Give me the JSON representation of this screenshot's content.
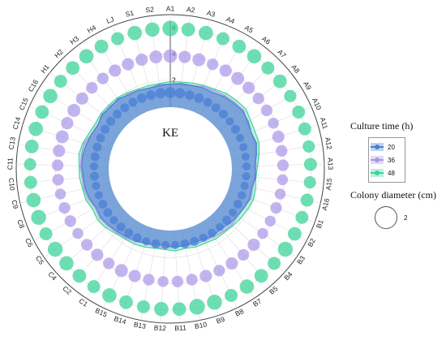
{
  "chart_data": {
    "type": "radar",
    "center_label": "KE",
    "categories": [
      "A1",
      "A2",
      "A3",
      "A4",
      "A5",
      "A6",
      "A7",
      "A8",
      "A9",
      "A10",
      "A11",
      "A12",
      "A13",
      "A15",
      "A16",
      "B1",
      "B2",
      "B3",
      "B4",
      "B5",
      "B7",
      "B8",
      "B9",
      "B10",
      "B11",
      "B12",
      "B13",
      "B14",
      "B15",
      "C1",
      "C2",
      "C4",
      "C5",
      "C6",
      "C8",
      "C9",
      "C10",
      "C11",
      "C13",
      "C14",
      "C15",
      "C16",
      "H1",
      "H2",
      "H3",
      "H4",
      "LJ",
      "S1",
      "S2"
    ],
    "r_ticks": [
      2,
      4,
      6
    ],
    "rlim": [
      0,
      6.5
    ],
    "legend_title": "Culture time (h)",
    "size_legend_title": "Colony diameter (cm)",
    "size_legend_value": "2",
    "series": [
      {
        "name": "20",
        "color": "#4a7fd6",
        "values": [
          1.7,
          1.8,
          1.8,
          1.9,
          1.9,
          2.1,
          2.2,
          2.3,
          2.2,
          2.0,
          2.1,
          1.9,
          1.7,
          1.8,
          1.6,
          1.7,
          1.6,
          1.5,
          1.4,
          1.2,
          1.3,
          1.2,
          1.1,
          1.2,
          1.2,
          1.1,
          1.1,
          1.2,
          1.3,
          1.4,
          1.5,
          1.6,
          1.7,
          1.6,
          1.8,
          1.9,
          1.9,
          2.0,
          2.0,
          1.9,
          1.8,
          1.7,
          1.9,
          1.8,
          1.9,
          1.7,
          1.7,
          1.6,
          1.7
        ],
        "sizes": [
          1.6,
          1.5,
          1.4,
          1.4,
          1.3,
          1.3,
          1.3,
          1.2,
          1.3,
          1.2,
          1.2,
          1.2,
          1.2,
          1.2,
          1.2,
          1.2,
          1.3,
          1.2,
          1.3,
          1.2,
          1.2,
          1.2,
          1.3,
          1.3,
          1.2,
          1.2,
          1.3,
          1.2,
          1.3,
          1.3,
          1.3,
          1.2,
          1.3,
          1.3,
          1.2,
          1.2,
          1.3,
          1.2,
          1.3,
          1.3,
          1.3,
          1.3,
          1.3,
          1.3,
          1.3,
          1.3,
          1.4,
          1.4,
          1.5
        ]
      },
      {
        "name": "36",
        "color": "#a896e8",
        "values": [
          1.7,
          1.7,
          1.8,
          2.0,
          2.1,
          2.2,
          2.3,
          2.4,
          2.1,
          2.0,
          2.0,
          1.8,
          1.8,
          1.7,
          1.7,
          1.8,
          1.6,
          1.5,
          1.6,
          1.5,
          1.4,
          1.3,
          1.3,
          1.2,
          1.2,
          1.3,
          1.3,
          1.2,
          1.4,
          1.5,
          1.6,
          1.7,
          1.8,
          1.7,
          1.9,
          2.0,
          2.0,
          2.1,
          2.1,
          2.1,
          1.8,
          1.7,
          1.8,
          1.9,
          1.8,
          1.8,
          1.7,
          1.6,
          1.6
        ],
        "sizes": [
          2.0,
          1.8,
          1.9,
          1.7,
          1.8,
          1.9,
          1.8,
          1.7,
          1.7,
          1.6,
          1.8,
          1.7,
          1.7,
          1.6,
          1.6,
          1.7,
          1.6,
          1.6,
          1.8,
          1.7,
          1.8,
          1.7,
          1.8,
          1.7,
          1.7,
          1.6,
          1.7,
          1.8,
          1.9,
          1.7,
          1.8,
          1.7,
          1.6,
          1.7,
          1.7,
          1.6,
          1.7,
          1.7,
          1.8,
          1.9,
          1.8,
          1.9,
          1.8,
          1.7,
          1.7,
          1.8,
          1.8,
          1.8,
          1.9
        ]
      },
      {
        "name": "48",
        "color": "#3ed39a",
        "values": [
          1.9,
          1.9,
          2.0,
          2.1,
          2.2,
          2.4,
          2.5,
          2.6,
          2.4,
          2.3,
          2.3,
          2.1,
          1.9,
          1.8,
          1.9,
          2.0,
          1.9,
          1.8,
          1.7,
          1.6,
          1.6,
          1.5,
          1.5,
          1.4,
          1.5,
          1.4,
          1.4,
          1.5,
          1.6,
          1.6,
          1.7,
          1.9,
          2.0,
          1.9,
          2.1,
          2.1,
          2.2,
          2.2,
          2.3,
          2.2,
          2.0,
          1.9,
          2.0,
          2.0,
          2.0,
          1.9,
          1.8,
          1.8,
          1.8
        ],
        "sizes": [
          2.3,
          2.0,
          2.1,
          1.9,
          2.0,
          2.1,
          1.9,
          2.0,
          1.8,
          1.9,
          1.9,
          1.8,
          1.9,
          1.8,
          1.9,
          1.9,
          2.0,
          2.2,
          1.9,
          2.0,
          2.1,
          1.9,
          2.2,
          2.3,
          2.0,
          2.1,
          1.9,
          2.0,
          2.1,
          1.9,
          2.0,
          2.1,
          2.2,
          1.9,
          2.2,
          2.1,
          1.9,
          1.8,
          2.0,
          2.1,
          2.0,
          2.1,
          1.9,
          2.0,
          2.1,
          2.0,
          1.9,
          2.1,
          2.1
        ]
      }
    ]
  }
}
